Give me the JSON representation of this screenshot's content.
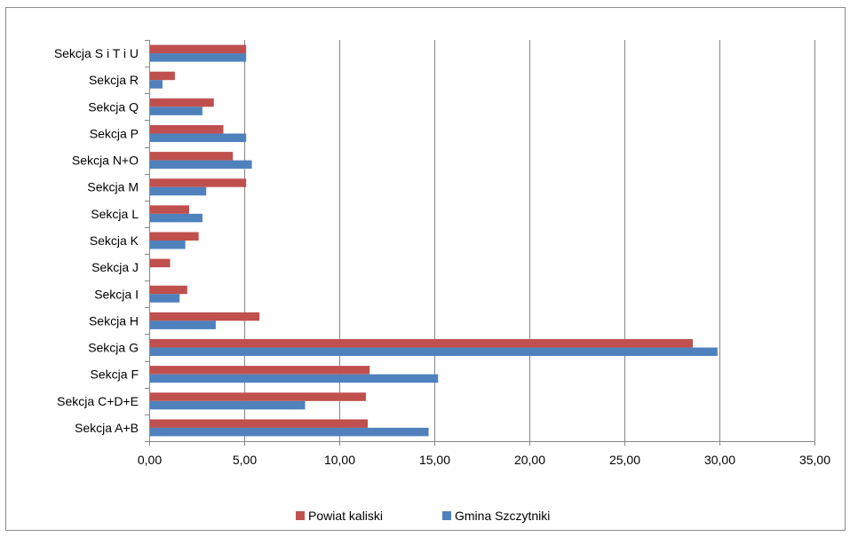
{
  "chart_data": {
    "type": "bar",
    "orientation": "horizontal",
    "title": "",
    "xlabel": "",
    "ylabel": "",
    "categories": [
      "Sekcja A+B",
      "Sekcja C+D+E",
      "Sekcja F",
      "Sekcja G",
      "Sekcja H",
      "Sekcja I",
      "Sekcja J",
      "Sekcja K",
      "Sekcja L",
      "Sekcja M",
      "Sekcja N+O",
      "Sekcja P",
      "Sekcja Q",
      "Sekcja R",
      "Sekcja S i T i U"
    ],
    "series": [
      {
        "name": "Powiat kaliski",
        "color": "#c0504d",
        "values": [
          11.5,
          11.4,
          11.6,
          28.6,
          5.8,
          2.0,
          1.1,
          2.6,
          2.1,
          5.1,
          4.4,
          3.9,
          3.4,
          1.35,
          5.1
        ]
      },
      {
        "name": "Gmina Szczytniki",
        "color": "#4f81bd",
        "values": [
          14.7,
          8.2,
          15.2,
          29.9,
          3.5,
          1.6,
          0.0,
          1.9,
          2.8,
          3.0,
          5.4,
          5.1,
          2.8,
          0.7,
          5.1
        ]
      }
    ],
    "xlim": [
      0,
      35
    ],
    "xticks": [
      0,
      5,
      10,
      15,
      20,
      25,
      30,
      35
    ],
    "xtick_labels": [
      "0,00",
      "5,00",
      "10,00",
      "15,00",
      "20,00",
      "25,00",
      "30,00",
      "35,00"
    ],
    "grid": true,
    "legend_position": "bottom"
  }
}
